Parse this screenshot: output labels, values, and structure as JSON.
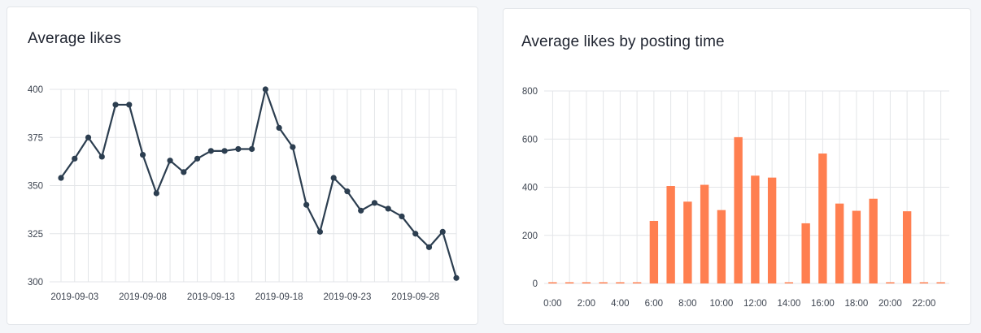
{
  "charts": {
    "left_title": "Average likes",
    "right_title": "Average likes by posting time"
  },
  "chart_data": [
    {
      "type": "line",
      "title": "Average likes",
      "x": [
        "2019-09-02",
        "2019-09-03",
        "2019-09-04",
        "2019-09-05",
        "2019-09-06",
        "2019-09-07",
        "2019-09-08",
        "2019-09-09",
        "2019-09-10",
        "2019-09-11",
        "2019-09-12",
        "2019-09-13",
        "2019-09-14",
        "2019-09-15",
        "2019-09-16",
        "2019-09-17",
        "2019-09-18",
        "2019-09-19",
        "2019-09-20",
        "2019-09-21",
        "2019-09-22",
        "2019-09-23",
        "2019-09-24",
        "2019-09-25",
        "2019-09-26",
        "2019-09-27",
        "2019-09-28",
        "2019-09-29",
        "2019-09-30",
        "2019-10-01"
      ],
      "values": [
        354,
        364,
        375,
        365,
        392,
        392,
        366,
        346,
        363,
        357,
        364,
        368,
        368,
        369,
        369,
        400,
        380,
        370,
        340,
        326,
        354,
        347,
        337,
        341,
        338,
        334,
        325,
        318,
        326,
        302
      ],
      "x_tick_labels": [
        "2019-09-03",
        "2019-09-08",
        "2019-09-13",
        "2019-09-18",
        "2019-09-23",
        "2019-09-28"
      ],
      "y_ticks": [
        300,
        325,
        350,
        375,
        400
      ],
      "ylim": [
        300,
        400
      ],
      "grid": true,
      "color": "#2c3e50"
    },
    {
      "type": "bar",
      "title": "Average likes by posting time",
      "categories": [
        "0:00",
        "1:00",
        "2:00",
        "3:00",
        "4:00",
        "5:00",
        "6:00",
        "7:00",
        "8:00",
        "9:00",
        "10:00",
        "11:00",
        "12:00",
        "13:00",
        "14:00",
        "15:00",
        "16:00",
        "17:00",
        "18:00",
        "19:00",
        "20:00",
        "21:00",
        "22:00",
        "23:00"
      ],
      "values": [
        5,
        5,
        5,
        5,
        5,
        5,
        260,
        405,
        340,
        410,
        305,
        608,
        448,
        440,
        5,
        250,
        540,
        332,
        302,
        352,
        5,
        300,
        5,
        5
      ],
      "x_tick_labels": [
        "0:00",
        "2:00",
        "4:00",
        "6:00",
        "8:00",
        "10:00",
        "12:00",
        "14:00",
        "16:00",
        "18:00",
        "20:00",
        "22:00"
      ],
      "y_ticks": [
        0,
        200,
        400,
        600,
        800
      ],
      "ylim": [
        0,
        800
      ],
      "grid": true,
      "color": "#ff7f50"
    }
  ]
}
